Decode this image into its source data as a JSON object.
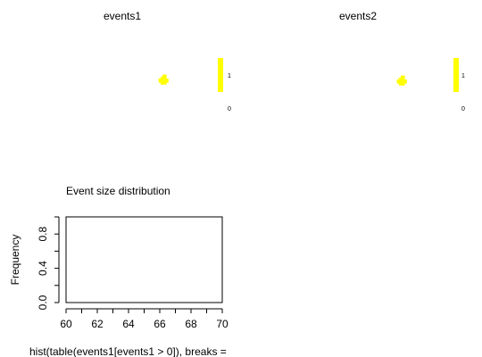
{
  "chart_data": [
    {
      "type": "heatmap",
      "title": "events1",
      "description": "image of event mask; single small yellow blob",
      "legend": {
        "labels": [
          "1",
          "0"
        ],
        "colors": [
          "#ffff00",
          "#ffffff"
        ]
      },
      "blob_color": "#ffff00"
    },
    {
      "type": "heatmap",
      "title": "events2",
      "description": "image of event mask; single small yellow blob",
      "legend": {
        "labels": [
          "1",
          "0"
        ],
        "colors": [
          "#ffff00",
          "#ffffff"
        ]
      },
      "blob_color": "#ffff00"
    },
    {
      "type": "bar",
      "title": "Event size distribution",
      "ylabel": "Frequency",
      "xlabel": "hist(table(events1[events1 > 0]), breaks =",
      "xlim": [
        60,
        70
      ],
      "ylim": [
        0,
        1
      ],
      "xticks": [
        "60",
        "62",
        "64",
        "66",
        "68",
        "70"
      ],
      "yticks": [
        "0.0",
        "0.4",
        "0.8"
      ],
      "categories": [],
      "values": []
    }
  ]
}
